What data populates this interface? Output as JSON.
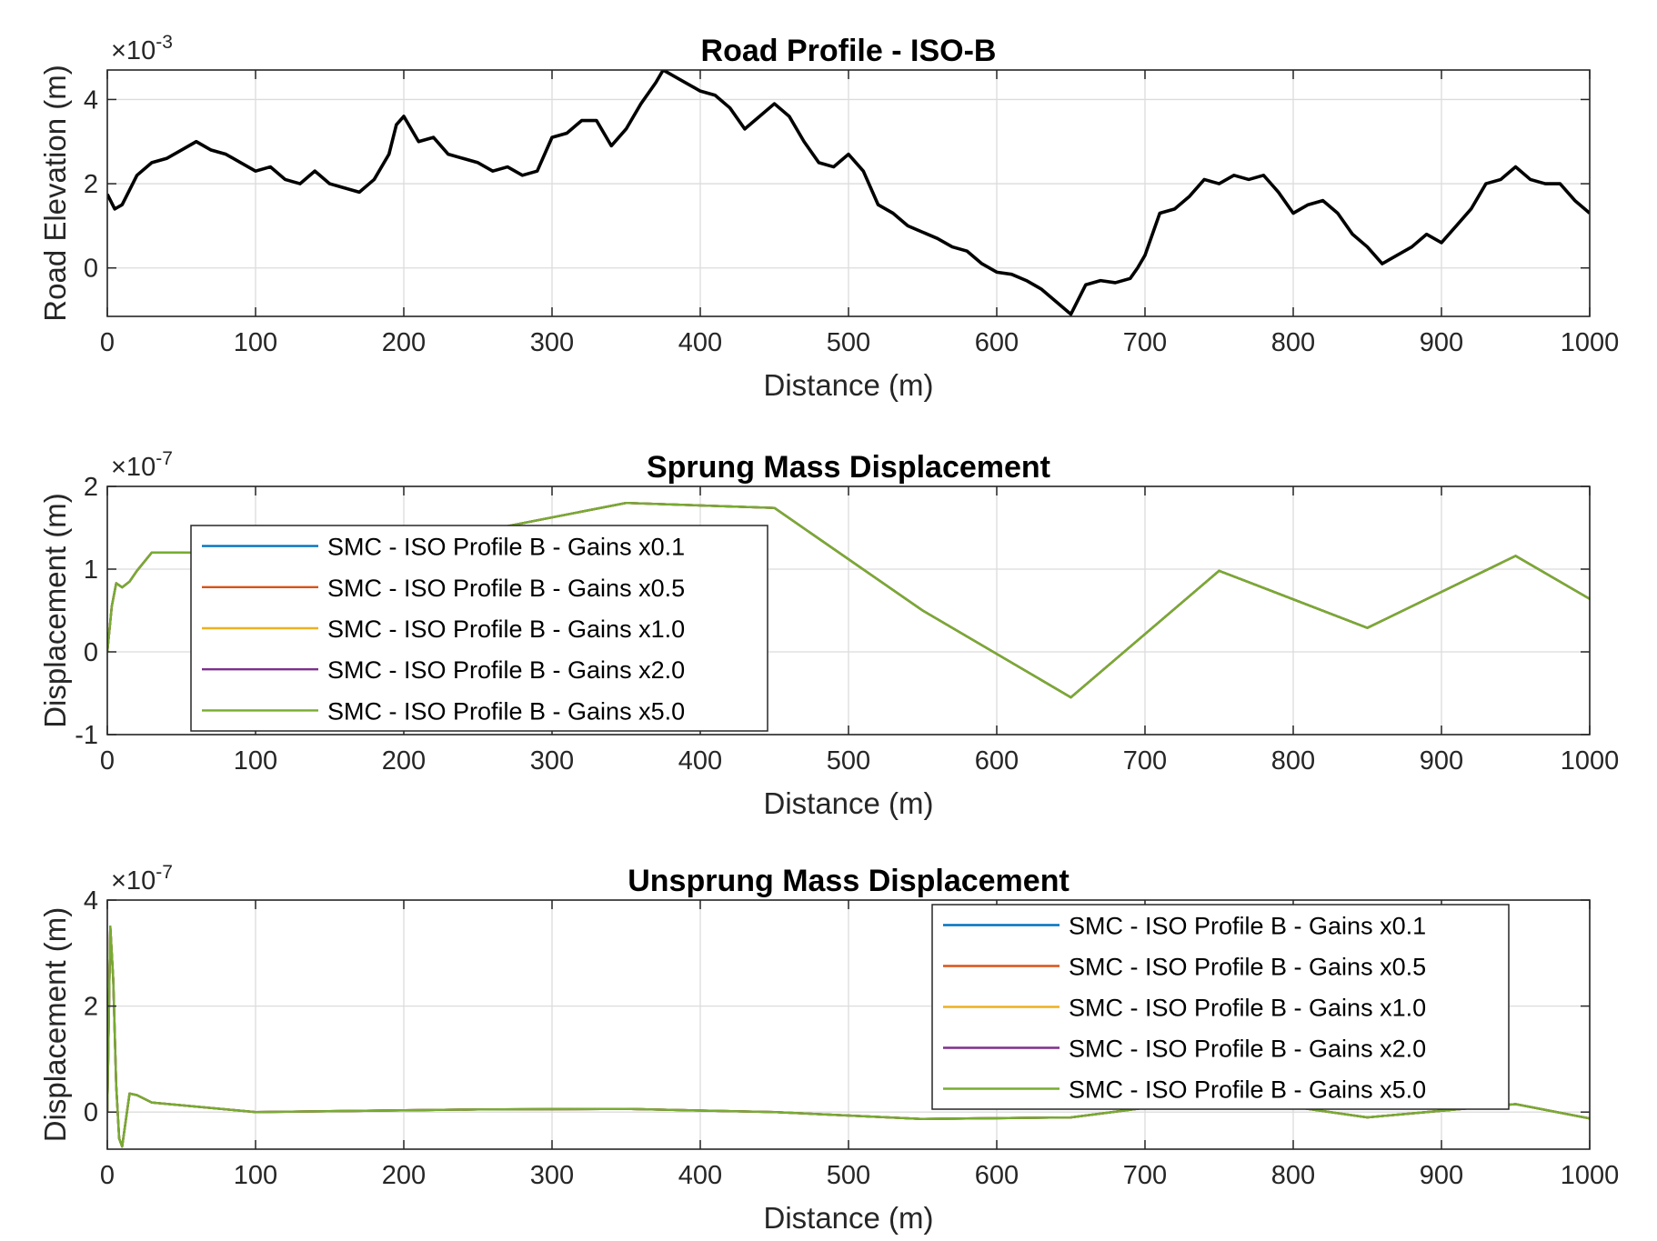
{
  "chart_data": [
    {
      "type": "line",
      "title": "Road Profile - ISO-B",
      "xlabel": "Distance (m)",
      "ylabel": "Road Elevation (m)",
      "y_exponent": "×10",
      "y_exponent_power": "-3",
      "xlim": [
        0,
        1000
      ],
      "ylim": [
        -1.15,
        4.7
      ],
      "xticks": [
        0,
        100,
        200,
        300,
        400,
        500,
        600,
        700,
        800,
        900,
        1000
      ],
      "yticks": [
        0,
        2,
        4
      ],
      "grid": true,
      "legend": null,
      "series": [
        {
          "color": "#000000",
          "x": [
            0,
            5,
            10,
            20,
            30,
            40,
            50,
            60,
            70,
            80,
            90,
            100,
            110,
            120,
            130,
            140,
            150,
            160,
            170,
            180,
            190,
            195,
            200,
            210,
            220,
            230,
            240,
            250,
            260,
            270,
            280,
            290,
            300,
            310,
            320,
            330,
            340,
            350,
            360,
            370,
            375,
            380,
            390,
            400,
            410,
            420,
            430,
            440,
            450,
            460,
            470,
            480,
            490,
            500,
            510,
            520,
            530,
            540,
            550,
            560,
            570,
            580,
            590,
            600,
            610,
            620,
            630,
            640,
            650,
            660,
            670,
            680,
            690,
            695,
            700,
            710,
            720,
            730,
            740,
            750,
            760,
            770,
            780,
            790,
            800,
            810,
            820,
            830,
            840,
            850,
            860,
            870,
            880,
            890,
            900,
            910,
            920,
            930,
            940,
            950,
            960,
            970,
            980,
            990,
            1000
          ],
          "values": [
            1.75,
            1.4,
            1.5,
            2.2,
            2.5,
            2.6,
            2.8,
            3.0,
            2.8,
            2.7,
            2.5,
            2.3,
            2.4,
            2.1,
            2.0,
            2.3,
            2.0,
            1.9,
            1.8,
            2.1,
            2.7,
            3.4,
            3.6,
            3.0,
            3.1,
            2.7,
            2.6,
            2.5,
            2.3,
            2.4,
            2.2,
            2.3,
            3.1,
            3.2,
            3.5,
            3.5,
            2.9,
            3.3,
            3.9,
            4.4,
            4.7,
            4.6,
            4.4,
            4.2,
            4.1,
            3.8,
            3.3,
            3.6,
            3.9,
            3.6,
            3.0,
            2.5,
            2.4,
            2.7,
            2.3,
            1.5,
            1.3,
            1.0,
            0.85,
            0.7,
            0.5,
            0.4,
            0.1,
            -0.1,
            -0.15,
            -0.3,
            -0.5,
            -0.8,
            -1.1,
            -0.4,
            -0.3,
            -0.35,
            -0.25,
            0.0,
            0.3,
            1.3,
            1.4,
            1.7,
            2.1,
            2.0,
            2.2,
            2.1,
            2.2,
            1.8,
            1.3,
            1.5,
            1.6,
            1.3,
            0.8,
            0.5,
            0.1,
            0.3,
            0.5,
            0.8,
            0.6,
            1.0,
            1.4,
            2.0,
            2.1,
            2.4,
            2.1,
            2.0,
            2.0,
            1.6,
            1.3
          ]
        }
      ]
    },
    {
      "type": "line",
      "title": "Sprung Mass Displacement",
      "xlabel": "Distance (m)",
      "ylabel": "Displacement (m)",
      "y_exponent": "×10",
      "y_exponent_power": "-7",
      "xlim": [
        0,
        1000
      ],
      "ylim": [
        -1,
        2
      ],
      "xticks": [
        0,
        100,
        200,
        300,
        400,
        500,
        600,
        700,
        800,
        900,
        1000
      ],
      "yticks": [
        -1,
        0,
        1,
        2
      ],
      "grid": true,
      "legend": "top-left",
      "series": [
        {
          "name": "SMC - ISO Profile B - Gains x0.1",
          "color": "#0072BD",
          "x": [
            0,
            3,
            6,
            10,
            15,
            20,
            30,
            50,
            150,
            250,
            350,
            450,
            550,
            650,
            750,
            850,
            950,
            1000
          ],
          "values": [
            0,
            0.55,
            0.83,
            0.78,
            0.85,
            0.98,
            1.2,
            1.2,
            1.22,
            1.45,
            1.8,
            1.74,
            0.5,
            -0.55,
            0.98,
            0.29,
            1.16,
            0.64
          ]
        },
        {
          "name": "SMC - ISO Profile B - Gains x0.5",
          "color": "#D95319",
          "x": [
            0,
            3,
            6,
            10,
            15,
            20,
            30,
            50,
            150,
            250,
            350,
            450,
            550,
            650,
            750,
            850,
            950,
            1000
          ],
          "values": [
            0,
            0.55,
            0.83,
            0.78,
            0.85,
            0.98,
            1.2,
            1.2,
            1.22,
            1.45,
            1.8,
            1.74,
            0.5,
            -0.55,
            0.98,
            0.29,
            1.16,
            0.64
          ]
        },
        {
          "name": "SMC - ISO Profile B - Gains x1.0",
          "color": "#EDB120",
          "x": [
            0,
            3,
            6,
            10,
            15,
            20,
            30,
            50,
            150,
            250,
            350,
            450,
            550,
            650,
            750,
            850,
            950,
            1000
          ],
          "values": [
            0,
            0.55,
            0.83,
            0.78,
            0.85,
            0.98,
            1.2,
            1.2,
            1.22,
            1.45,
            1.8,
            1.74,
            0.5,
            -0.55,
            0.98,
            0.29,
            1.16,
            0.64
          ]
        },
        {
          "name": "SMC - ISO Profile B - Gains x2.0",
          "color": "#7E2F8E",
          "x": [
            0,
            3,
            6,
            10,
            15,
            20,
            30,
            50,
            150,
            250,
            350,
            450,
            550,
            650,
            750,
            850,
            950,
            1000
          ],
          "values": [
            0,
            0.55,
            0.83,
            0.78,
            0.85,
            0.98,
            1.2,
            1.2,
            1.22,
            1.45,
            1.8,
            1.74,
            0.5,
            -0.55,
            0.98,
            0.29,
            1.16,
            0.64
          ]
        },
        {
          "name": "SMC - ISO Profile B - Gains x5.0",
          "color": "#77AC30",
          "x": [
            0,
            3,
            6,
            10,
            15,
            20,
            30,
            50,
            150,
            250,
            350,
            450,
            550,
            650,
            750,
            850,
            950,
            1000
          ],
          "values": [
            0,
            0.55,
            0.83,
            0.78,
            0.85,
            0.98,
            1.2,
            1.2,
            1.22,
            1.45,
            1.8,
            1.74,
            0.5,
            -0.55,
            0.98,
            0.29,
            1.16,
            0.64
          ]
        }
      ]
    },
    {
      "type": "line",
      "title": "Unsprung Mass Displacement",
      "xlabel": "Distance (m)",
      "ylabel": "Displacement (m)",
      "y_exponent": "×10",
      "y_exponent_power": "-7",
      "xlim": [
        0,
        1000
      ],
      "ylim": [
        -0.7,
        4
      ],
      "xticks": [
        0,
        100,
        200,
        300,
        400,
        500,
        600,
        700,
        800,
        900,
        1000
      ],
      "yticks": [
        0,
        2,
        4
      ],
      "grid": true,
      "legend": "top-right",
      "series": [
        {
          "name": "SMC - ISO Profile B - Gains x0.1",
          "color": "#0072BD",
          "x": [
            0,
            2,
            4,
            6,
            8,
            10,
            15,
            20,
            30,
            100,
            250,
            350,
            450,
            550,
            650,
            700,
            750,
            850,
            950,
            1000
          ],
          "values": [
            0,
            3.5,
            2.5,
            0.5,
            -0.5,
            -0.65,
            0.35,
            0.32,
            0.18,
            0.0,
            0.05,
            0.06,
            0.0,
            -0.13,
            -0.1,
            0.08,
            0.3,
            -0.1,
            0.15,
            -0.12
          ]
        },
        {
          "name": "SMC - ISO Profile B - Gains x0.5",
          "color": "#D95319",
          "x": [
            0,
            2,
            4,
            6,
            8,
            10,
            15,
            20,
            30,
            100,
            250,
            350,
            450,
            550,
            650,
            700,
            750,
            850,
            950,
            1000
          ],
          "values": [
            0,
            3.5,
            2.5,
            0.5,
            -0.5,
            -0.65,
            0.35,
            0.32,
            0.18,
            0.0,
            0.05,
            0.06,
            0.0,
            -0.13,
            -0.1,
            0.08,
            0.3,
            -0.1,
            0.15,
            -0.12
          ]
        },
        {
          "name": "SMC - ISO Profile B - Gains x1.0",
          "color": "#EDB120",
          "x": [
            0,
            2,
            4,
            6,
            8,
            10,
            15,
            20,
            30,
            100,
            250,
            350,
            450,
            550,
            650,
            700,
            750,
            850,
            950,
            1000
          ],
          "values": [
            0,
            3.5,
            2.5,
            0.5,
            -0.5,
            -0.65,
            0.35,
            0.32,
            0.18,
            0.0,
            0.05,
            0.06,
            0.0,
            -0.13,
            -0.1,
            0.08,
            0.3,
            -0.1,
            0.15,
            -0.12
          ]
        },
        {
          "name": "SMC - ISO Profile B - Gains x2.0",
          "color": "#7E2F8E",
          "x": [
            0,
            2,
            4,
            6,
            8,
            10,
            15,
            20,
            30,
            100,
            250,
            350,
            450,
            550,
            650,
            700,
            750,
            850,
            950,
            1000
          ],
          "values": [
            0,
            3.5,
            2.5,
            0.5,
            -0.5,
            -0.65,
            0.35,
            0.32,
            0.18,
            0.0,
            0.05,
            0.06,
            0.0,
            -0.13,
            -0.1,
            0.08,
            0.3,
            -0.1,
            0.15,
            -0.12
          ]
        },
        {
          "name": "SMC - ISO Profile B - Gains x5.0",
          "color": "#77AC30",
          "x": [
            0,
            2,
            4,
            6,
            8,
            10,
            15,
            20,
            30,
            100,
            250,
            350,
            450,
            550,
            650,
            700,
            750,
            850,
            950,
            1000
          ],
          "values": [
            0,
            3.5,
            2.5,
            0.5,
            -0.5,
            -0.65,
            0.35,
            0.32,
            0.18,
            0.0,
            0.05,
            0.06,
            0.0,
            -0.13,
            -0.1,
            0.08,
            0.3,
            -0.1,
            0.15,
            -0.12
          ]
        }
      ]
    }
  ]
}
